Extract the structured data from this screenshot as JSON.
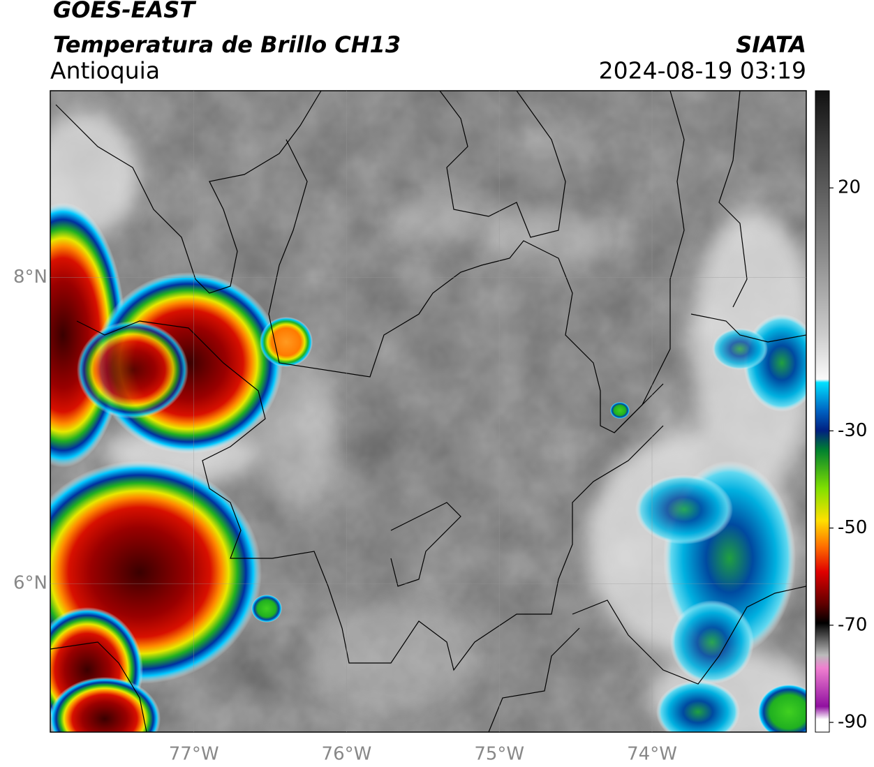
{
  "header": {
    "title": "GOES-EAST",
    "subtitle": "Temperatura de Brillo CH13",
    "region": "Antioquia",
    "source": "SIATA",
    "datetime": "2024-08-19 03:19"
  },
  "map": {
    "lonlim": [
      -77.94,
      -72.99
    ],
    "latlim": [
      5.03,
      9.22
    ],
    "lonticks": [
      {
        "value": -77,
        "label": "77°W"
      },
      {
        "value": -76,
        "label": "76°W"
      },
      {
        "value": -75,
        "label": "75°W"
      },
      {
        "value": -74,
        "label": "74°W"
      }
    ],
    "latticks": [
      {
        "value": 8,
        "label": "8°N"
      },
      {
        "value": 6,
        "label": "6°N"
      }
    ],
    "grid": true
  },
  "colorbar": {
    "lim": [
      -92,
      40
    ],
    "ticks": [
      20,
      -30,
      -50,
      -70,
      -90
    ]
  }
}
